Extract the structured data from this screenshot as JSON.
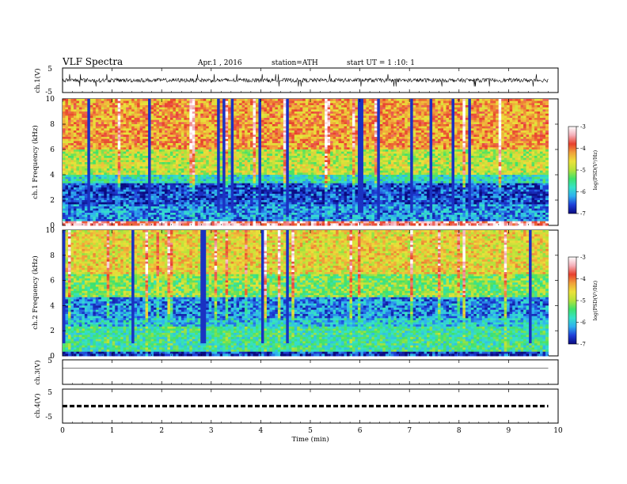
{
  "header": {
    "title": "VLF Spectra",
    "date": "Apr.1 , 2016",
    "station": "station=ATH",
    "start": "start UT = 1 :10: 1"
  },
  "colorbar": {
    "label": "log(PSD(V²/Hz)",
    "ticks": [
      "-3",
      "-4",
      "-5",
      "-6",
      "-7"
    ],
    "colors": [
      "#0a0a80",
      "#1f3fd8",
      "#2fb0f0",
      "#36e2c8",
      "#3fe26a",
      "#b4e23a",
      "#ece13a",
      "#f0a03a",
      "#e8402e",
      "#f4aeb8",
      "#ffffff"
    ]
  },
  "chart_data": [
    {
      "type": "line",
      "name": "ch1-waveform",
      "ylabel": "ch.1(V)",
      "ylim": [
        -5,
        5
      ],
      "y_ticks": [
        "5",
        "-5"
      ],
      "x_range_min": [
        0,
        9.8
      ],
      "baseline": 0,
      "fluctuation_amplitude": 0.8,
      "spike_amplitude": 2.5
    },
    {
      "type": "heatmap",
      "name": "ch1-spectrogram",
      "ylabel": "ch.1 Frequency (kHz)",
      "ylim": [
        0,
        10
      ],
      "y_ticks": [
        "10",
        "8",
        "6",
        "4",
        "2",
        "0"
      ],
      "x_range_min": [
        0,
        9.8
      ],
      "value_range_logpsd": [
        -7,
        -3
      ],
      "bands": [
        {
          "from_khz": 0,
          "to_khz": 0.3,
          "level": -3.5
        },
        {
          "from_khz": 0.3,
          "to_khz": 1.6,
          "level": -6.3
        },
        {
          "from_khz": 1.6,
          "to_khz": 3.3,
          "level": -6.6
        },
        {
          "from_khz": 3.3,
          "to_khz": 4.0,
          "level": -5.8
        },
        {
          "from_khz": 4.0,
          "to_khz": 6.0,
          "level": -4.9
        },
        {
          "from_khz": 6.0,
          "to_khz": 10.0,
          "level": -4.2
        }
      ]
    },
    {
      "type": "heatmap",
      "name": "ch2-spectrogram",
      "ylabel": "ch.2 Frequency (kHz)",
      "ylim": [
        0,
        10
      ],
      "y_ticks": [
        "10",
        "8",
        "6",
        "4",
        "2",
        "0"
      ],
      "x_range_min": [
        0,
        9.8
      ],
      "value_range_logpsd": [
        -7,
        -3
      ],
      "bands": [
        {
          "from_khz": 0,
          "to_khz": 0.3,
          "level": -6.7
        },
        {
          "from_khz": 0.3,
          "to_khz": 2.4,
          "level": -5.6
        },
        {
          "from_khz": 2.4,
          "to_khz": 3.0,
          "level": -6.0
        },
        {
          "from_khz": 3.0,
          "to_khz": 4.6,
          "level": -6.3
        },
        {
          "from_khz": 4.6,
          "to_khz": 6.5,
          "level": -5.2
        },
        {
          "from_khz": 6.5,
          "to_khz": 10.0,
          "level": -4.6
        }
      ]
    },
    {
      "type": "line",
      "name": "ch3-waveform",
      "ylabel": "ch.3(V)",
      "ylim": [
        -5,
        5
      ],
      "y_ticks": [
        "5"
      ],
      "x_range_min": [
        0,
        9.8
      ],
      "baseline": 0
    },
    {
      "type": "line",
      "name": "ch4-waveform",
      "ylabel": "ch.4(V)",
      "ylim": [
        -5,
        5
      ],
      "y_ticks": [
        "5",
        "-5"
      ],
      "x_range_min": [
        0,
        9.8
      ],
      "baseline": 0,
      "style": "dashed"
    }
  ],
  "x_axis": {
    "label": "Time (min)",
    "xlim": [
      0,
      10
    ],
    "ticks": [
      "0",
      "1",
      "2",
      "3",
      "4",
      "5",
      "6",
      "7",
      "8",
      "9",
      "10"
    ]
  }
}
